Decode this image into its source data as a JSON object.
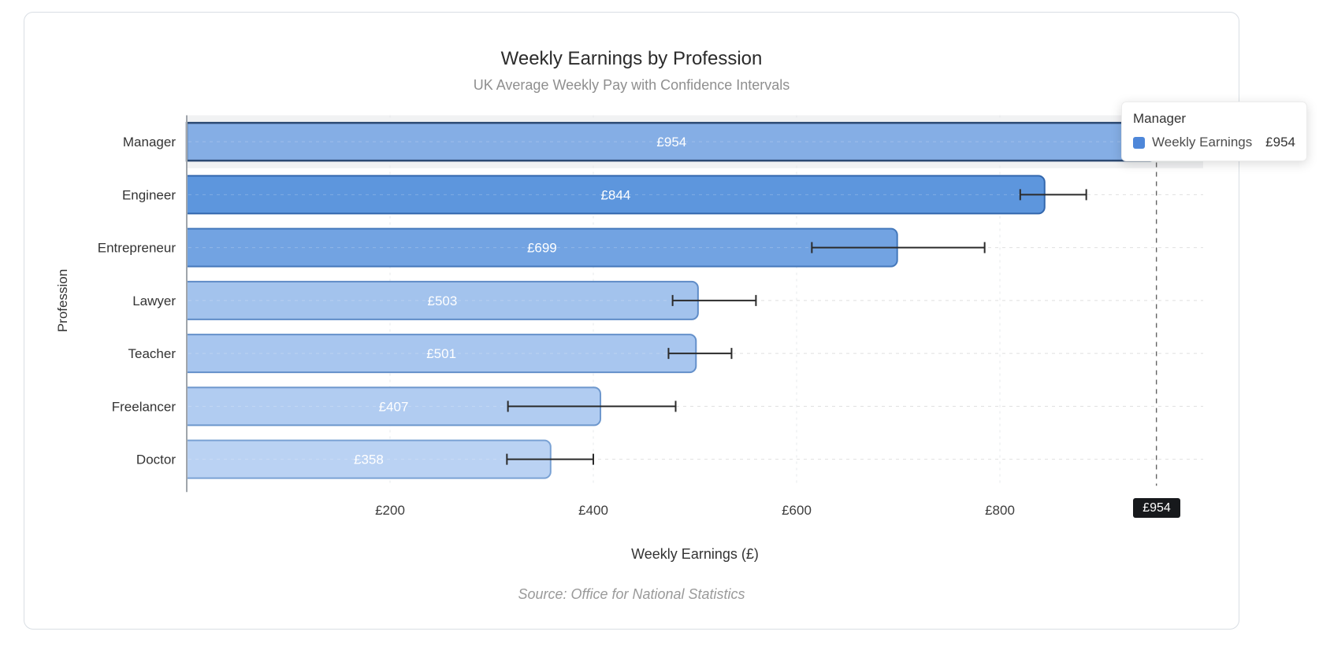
{
  "chart_data": {
    "type": "bar",
    "orientation": "horizontal",
    "title": "Weekly Earnings by Profession",
    "subtitle": "UK Average Weekly Pay with Confidence Intervals",
    "xlabel": "Weekly Earnings (£)",
    "ylabel": "Profession",
    "source_note": "Source: Office for National Statistics",
    "currency_prefix": "£",
    "xlim": [
      0,
      1000
    ],
    "x_ticks": [
      200,
      400,
      600,
      800
    ],
    "grid": true,
    "legend_position": "none",
    "categories": [
      "Manager",
      "Engineer",
      "Entrepreneur",
      "Lawyer",
      "Teacher",
      "Freelancer",
      "Doctor"
    ],
    "series": [
      {
        "name": "Weekly Earnings",
        "values": [
          954,
          844,
          699,
          503,
          501,
          407,
          358
        ]
      }
    ],
    "error_bars": {
      "low": [
        925,
        820,
        615,
        478,
        474,
        316,
        315
      ],
      "high": [
        1005,
        885,
        785,
        560,
        536,
        481,
        400
      ]
    },
    "bar_colors": [
      "#85aee5",
      "#5d96dd",
      "#72a3e2",
      "#a3c3ed",
      "#a8c6ef",
      "#b1ccf1",
      "#bad2f3"
    ],
    "bar_border_colors": [
      "#2c4a73",
      "#3367ad",
      "#4478bb",
      "#5f8cc7",
      "#6490ca",
      "#6d97cd",
      "#7aa2d4"
    ],
    "highlighted_category": "Manager",
    "marker": {
      "value": 954,
      "label": "£954"
    },
    "tooltip": {
      "title": "Manager",
      "series_label": "Weekly Earnings",
      "value_label": "£954",
      "swatch_color": "#4e87d9"
    }
  }
}
